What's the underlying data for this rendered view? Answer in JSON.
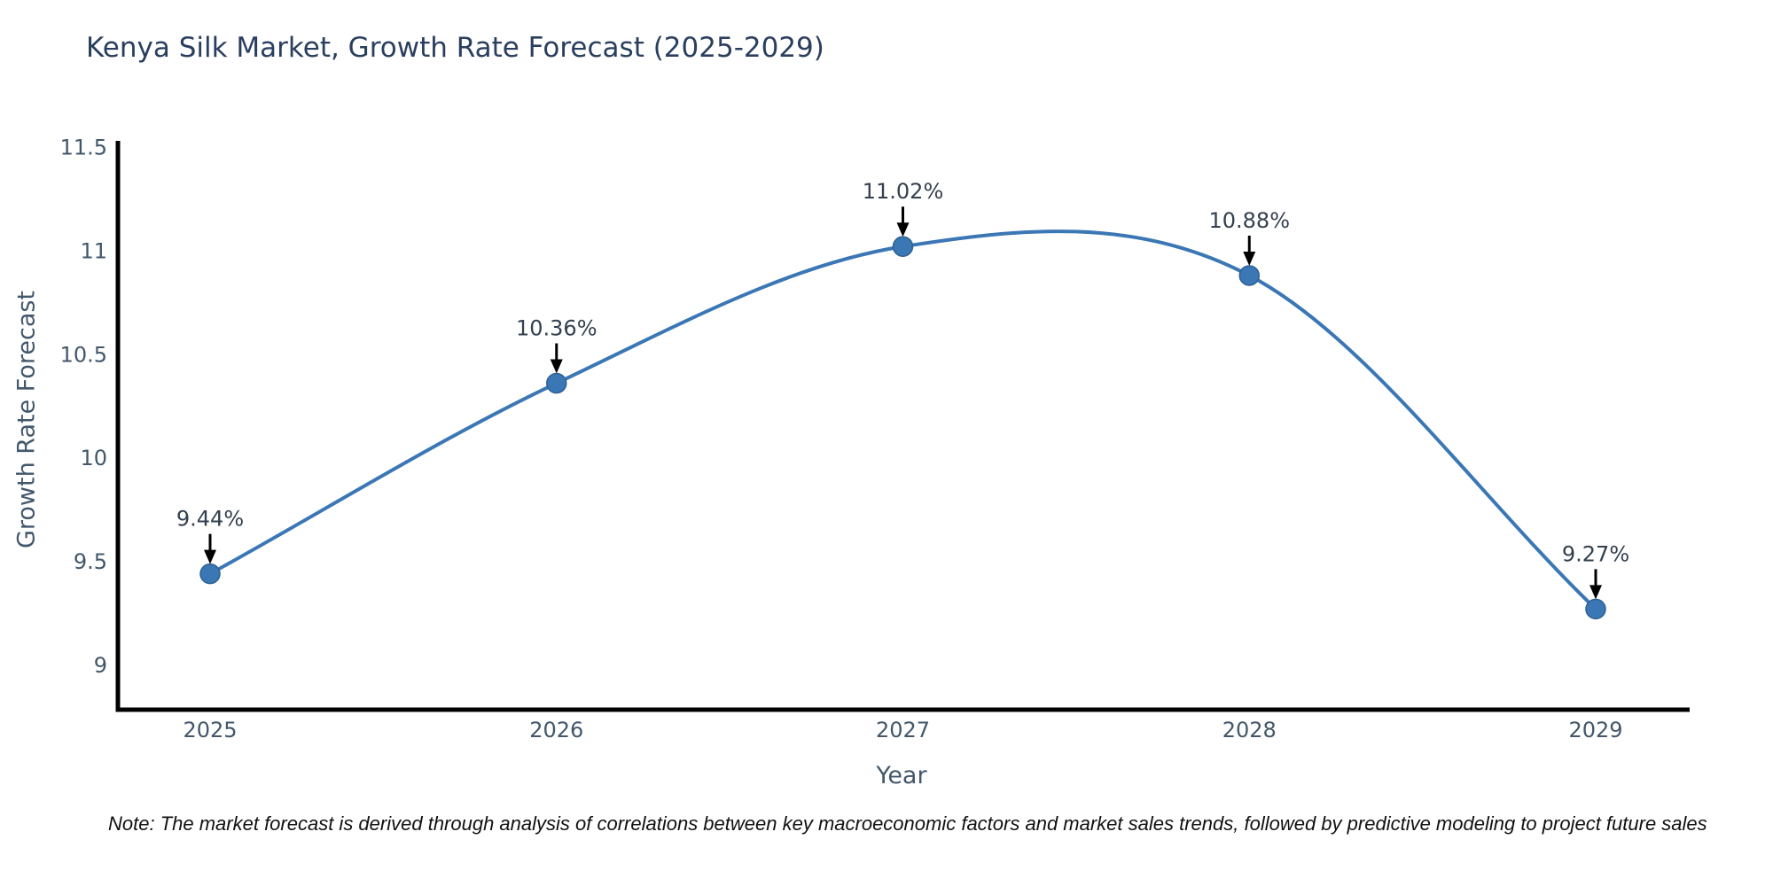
{
  "title": "Kenya Silk Market, Growth Rate Forecast (2025-2029)",
  "note": "Note: The market forecast is derived through analysis of correlations between key macroeconomic factors and market sales trends, followed by predictive modeling to project future sales",
  "chart_data": {
    "type": "line",
    "title": "Kenya Silk Market, Growth Rate Forecast (2025-2029)",
    "xlabel": "Year",
    "ylabel": "Growth Rate Forecast",
    "x": [
      2025,
      2026,
      2027,
      2028,
      2029
    ],
    "values": [
      9.44,
      10.36,
      11.02,
      10.88,
      9.27
    ],
    "point_labels": [
      "9.44%",
      "10.36%",
      "11.02%",
      "10.88%",
      "9.27%"
    ],
    "x_tick_labels": [
      "2025",
      "2026",
      "2027",
      "2028",
      "2029"
    ],
    "y_ticks": [
      11.5,
      11.0,
      10.5,
      10.0,
      9.5,
      9.0
    ],
    "y_tick_labels": [
      "11.5",
      "11",
      "10.5",
      "10",
      "9.5",
      "9"
    ],
    "ylim": [
      8.78,
      11.53
    ],
    "grid": false,
    "legend": "none",
    "line_style": "smooth-spline",
    "marker": "circle",
    "annotation_arrows": true,
    "colors": {
      "line": "#3a77b4",
      "marker_fill": "#3a77b4",
      "marker_edge": "#2e6093",
      "axis": "#000000",
      "arrow": "#000000",
      "title_text": "#2a3f5f",
      "tick_text": "#42576b",
      "annotation_text": "#33404f",
      "note_text": "#111111",
      "background": "#ffffff"
    }
  }
}
